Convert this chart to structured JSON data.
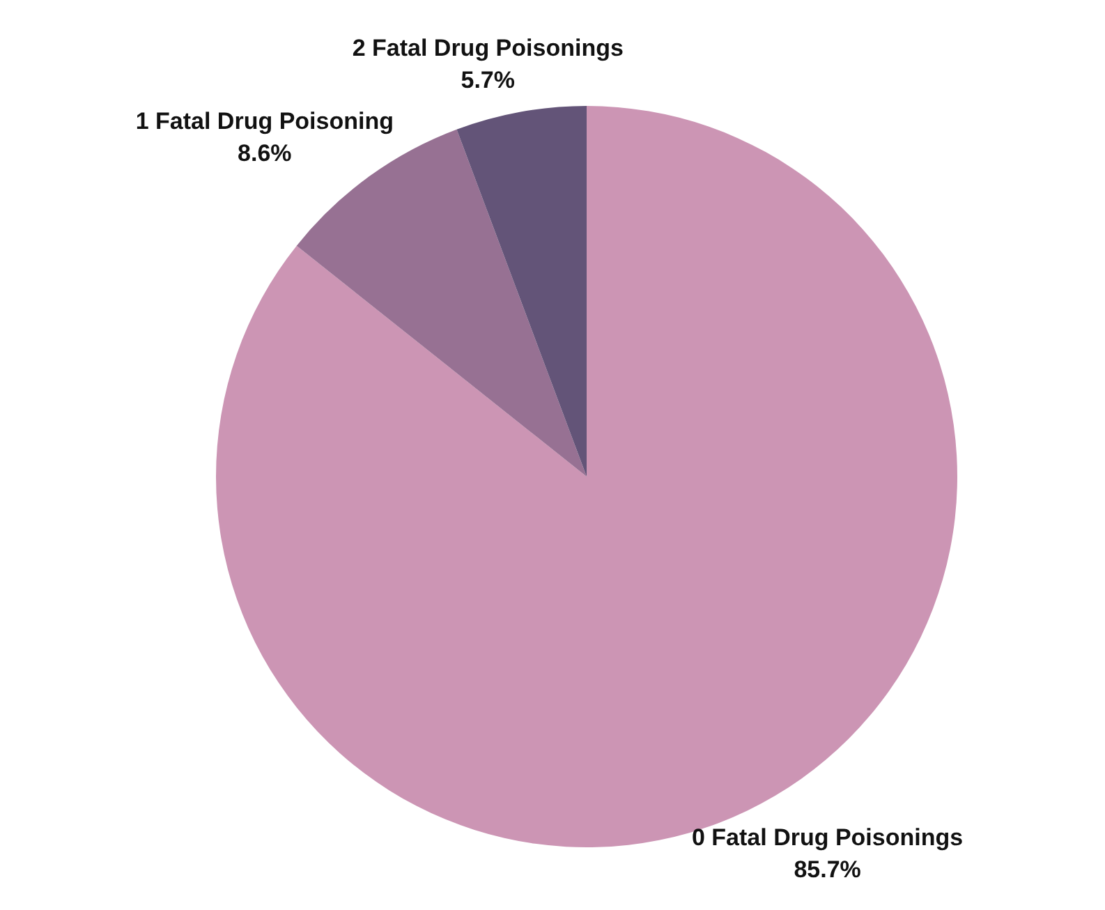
{
  "chart_data": {
    "type": "pie",
    "categories": [
      "0 Fatal Drug Poisonings",
      "1 Fatal Drug Poisoning",
      "2 Fatal Drug Poisonings"
    ],
    "values": [
      85.7,
      8.6,
      5.7
    ],
    "colors": [
      "#cc95b4",
      "#977193",
      "#635478"
    ],
    "value_labels": [
      "85.7%",
      "8.6%",
      "5.7%"
    ],
    "legend": false
  }
}
